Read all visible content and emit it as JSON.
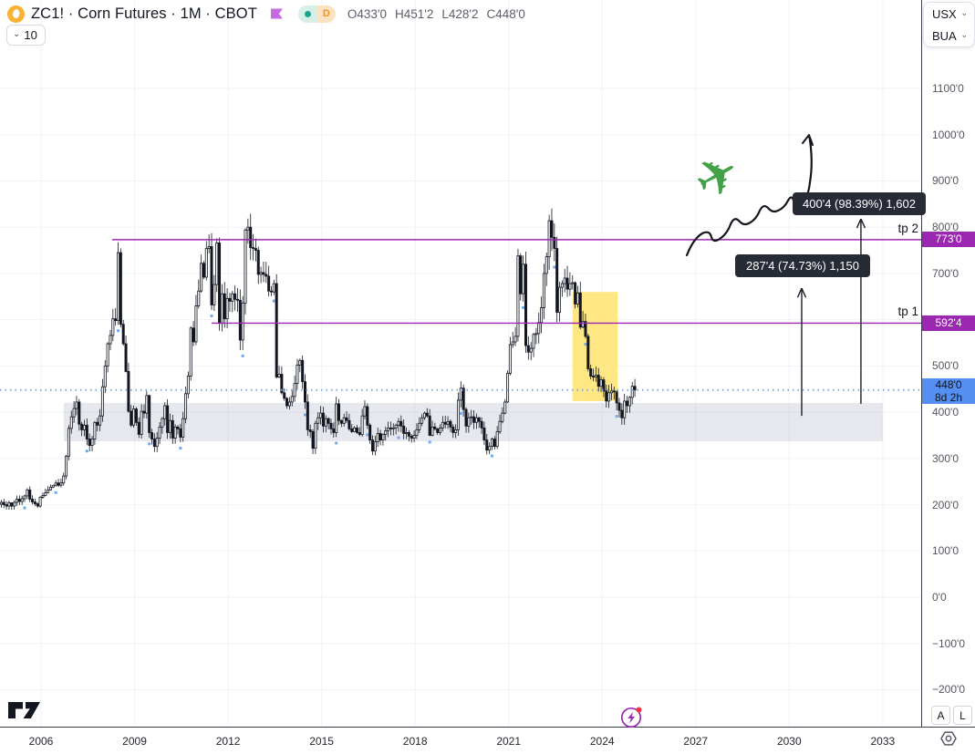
{
  "header": {
    "title": "ZC1! · Corn Futures · 1M · CBOT",
    "ohlc": {
      "open": "O433'0",
      "high": "H451'2",
      "low": "L428'2",
      "close": "C448'0"
    },
    "timeframe_badge": "D",
    "interval_chip": "10"
  },
  "icons": {
    "chevron_down": "⌄",
    "plane": "✈"
  },
  "side_panel": {
    "row1": "USX",
    "row2": "BUA"
  },
  "axis_buttons": {
    "auto": "A",
    "log": "L"
  },
  "colors": {
    "level_purple": "#9c27b0",
    "current_blue": "#5490f2",
    "dotted_blue": "#7fa7ea",
    "highlight_yellow": "#ffe36e",
    "band_gray": "#8f98ad",
    "plane_green": "#43a047",
    "tooltip_bg": "#262b36",
    "candle_dark": "#131722"
  },
  "chart_data": {
    "type": "candlestick",
    "symbol": "ZC1!",
    "interval": "1M",
    "start": "2004-09",
    "price_axis_ticks": [
      {
        "value": 1100,
        "label": "1100'0"
      },
      {
        "value": 1000,
        "label": "1000'0"
      },
      {
        "value": 900,
        "label": "900'0"
      },
      {
        "value": 800,
        "label": "800'0"
      },
      {
        "value": 700,
        "label": "700'0"
      },
      {
        "value": 500,
        "label": "500'0"
      },
      {
        "value": 400,
        "label": "400'0"
      },
      {
        "value": 300,
        "label": "300'0"
      },
      {
        "value": 200,
        "label": "200'0"
      },
      {
        "value": 100,
        "label": "100'0"
      },
      {
        "value": 0,
        "label": "0'0"
      },
      {
        "value": -100,
        "label": "−100'0"
      },
      {
        "value": -200,
        "label": "−200'0"
      }
    ],
    "time_axis_years": [
      2006,
      2009,
      2012,
      2015,
      2018,
      2021,
      2024,
      2027,
      2030,
      2033
    ],
    "levels": [
      {
        "price": 773,
        "label": "tp 2",
        "tag": "773'0",
        "x_start_year": 2008.28
      },
      {
        "price": 592.5,
        "label": "tp 1",
        "tag": "592'4",
        "x_start_year": 2011.47
      }
    ],
    "current": {
      "price": 448,
      "tag": "448'0",
      "countdown": "8d 2h"
    },
    "gray_band": {
      "year_from": 2006.73,
      "year_to": 2033,
      "price_from": 337,
      "price_to": 420
    },
    "yellow_box": {
      "year_from": 2023.05,
      "year_to": 2024.5,
      "price_from": 424,
      "price_to": 660
    },
    "arrows": [
      {
        "x_year": 2030.4,
        "price_from": 392,
        "price_to": 668
      },
      {
        "x_year": 2032.3,
        "price_from": 418,
        "price_to": 818
      }
    ],
    "measure_labels": [
      {
        "text": "400'4 (98.39%) 1,602"
      },
      {
        "text": "287'4 (74.73%) 1,150"
      }
    ],
    "monthly_closes": [
      205,
      200,
      197,
      204,
      197,
      205,
      212,
      207,
      213,
      219,
      232,
      212,
      206,
      202,
      197,
      216,
      220,
      226,
      232,
      238,
      242,
      247,
      242,
      247,
      262,
      305,
      365,
      390,
      408,
      422,
      374,
      362,
      372,
      342,
      328,
      342,
      378,
      372,
      392,
      455,
      500,
      548,
      566,
      602,
      598,
      745,
      590,
      548,
      488,
      402,
      372,
      407,
      378,
      352,
      402,
      398,
      436,
      356,
      342,
      326,
      344,
      368,
      386,
      414,
      356,
      382,
      344,
      368,
      364,
      346,
      386,
      440,
      478,
      582,
      552,
      630,
      662,
      722,
      692,
      754,
      758,
      632,
      676,
      766,
      592,
      656,
      602,
      646,
      640,
      656,
      644,
      642,
      556,
      636,
      794,
      800,
      756,
      754,
      750,
      698,
      702,
      698,
      694,
      662,
      660,
      678,
      476,
      482,
      442,
      430,
      414,
      422,
      434,
      462,
      502,
      512,
      466,
      422,
      362,
      358,
      322,
      376,
      388,
      398,
      370,
      386,
      376,
      364,
      356,
      418,
      382,
      376,
      388,
      382,
      364,
      358,
      366,
      356,
      352,
      392,
      412,
      372,
      340,
      316,
      336,
      354,
      340,
      352,
      360,
      366,
      364,
      366,
      372,
      380,
      370,
      354,
      356,
      348,
      344,
      350,
      362,
      376,
      388,
      398,
      392,
      350,
      368,
      364,
      356,
      366,
      378,
      374,
      380,
      368,
      356,
      362,
      426,
      452,
      406,
      370,
      388,
      390,
      378,
      388,
      380,
      366,
      340,
      318,
      326,
      342,
      326,
      358,
      380,
      398,
      422,
      484,
      546,
      552,
      564,
      738,
      656,
      720,
      544,
      530,
      538,
      568,
      570,
      594,
      626,
      700,
      736,
      814,
      778,
      754,
      616,
      670,
      678,
      690,
      666,
      678,
      680,
      634,
      658,
      584,
      596,
      564,
      494,
      478,
      476,
      480,
      456,
      470,
      446,
      424,
      442,
      446,
      444,
      420,
      404,
      388,
      424,
      414,
      432,
      456,
      448
    ]
  }
}
